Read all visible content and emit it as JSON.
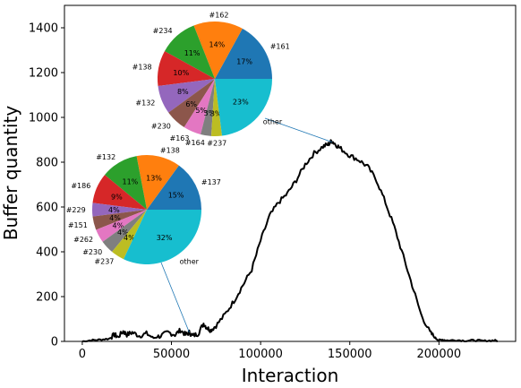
{
  "chart_data": [
    {
      "type": "line",
      "xlabel": "Interaction",
      "ylabel": "Buffer quantity",
      "xlim": [
        -10000,
        243000
      ],
      "ylim": [
        0,
        1500
      ],
      "xticks": [
        0,
        50000,
        100000,
        150000,
        200000
      ],
      "yticks": [
        0,
        200,
        400,
        600,
        800,
        1000,
        1200,
        1400
      ],
      "grid": false,
      "line_color": "#000000",
      "series": [
        {
          "x": [
            0,
            5000,
            10000,
            15000,
            18000,
            20000,
            23000,
            25000,
            28000,
            32000,
            36000,
            40000,
            44000,
            48000,
            52000,
            55000,
            58000,
            60000,
            62000,
            65000,
            68000,
            70000,
            72000,
            75000,
            80000,
            85000,
            90000,
            95000,
            100000,
            105000,
            110000,
            115000,
            120000,
            125000,
            130000,
            135000,
            138000,
            140000,
            142000,
            145000,
            150000,
            155000,
            160000,
            165000,
            170000,
            175000,
            180000,
            185000,
            190000,
            195000,
            198000,
            200000,
            202000,
            205000,
            210000,
            215000,
            220000,
            225000,
            230000,
            233000
          ],
          "y": [
            0,
            5,
            8,
            12,
            30,
            20,
            45,
            30,
            40,
            25,
            35,
            15,
            25,
            40,
            30,
            50,
            30,
            40,
            25,
            35,
            80,
            60,
            50,
            70,
            120,
            180,
            250,
            320,
            450,
            560,
            620,
            660,
            720,
            790,
            840,
            870,
            880,
            895,
            880,
            860,
            830,
            810,
            780,
            720,
            620,
            510,
            380,
            250,
            120,
            40,
            15,
            5,
            8,
            4,
            6,
            3,
            5,
            2,
            4,
            3
          ]
        }
      ]
    },
    {
      "type": "pie",
      "labels": [
        "#161",
        "#162",
        "#234",
        "#138",
        "#132",
        "#230",
        "#163",
        "#164",
        "#237",
        "other"
      ],
      "values": [
        17,
        14,
        11,
        10,
        8,
        6,
        5,
        3,
        3,
        23
      ],
      "percent_labels": [
        "17%",
        "14%",
        "11%",
        "10%",
        "8%",
        "6%",
        "5%",
        "3%",
        "3%",
        "23%"
      ],
      "annotation_target": {
        "x": 140000,
        "y": 890
      }
    },
    {
      "type": "pie",
      "labels": [
        "#137",
        "#138",
        "#132",
        "#186",
        "#229",
        "#151",
        "#262",
        "#230",
        "#237",
        "other"
      ],
      "values": [
        15,
        13,
        11,
        9,
        4,
        4,
        4,
        4,
        4,
        32
      ],
      "percent_labels": [
        "15%",
        "13%",
        "11%",
        "9%",
        "4%",
        "4%",
        "4%",
        "4%",
        "4%",
        "32%"
      ],
      "annotation_target": {
        "x": 60000,
        "y": 40
      }
    }
  ],
  "colors": [
    "#1f77b4",
    "#ff7f0e",
    "#2ca02c",
    "#d62728",
    "#9467bd",
    "#8c564b",
    "#e377c2",
    "#7f7f7f",
    "#bcbd22",
    "#17becf"
  ]
}
